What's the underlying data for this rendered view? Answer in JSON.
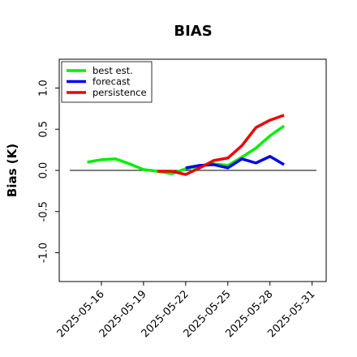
{
  "chart_data": {
    "type": "line",
    "title": "BIAS",
    "xlabel": "",
    "ylabel": "Bias (K)",
    "ylim": [
      -1.35,
      1.35
    ],
    "xlim": [
      "2025-05-13",
      "2025-06-01"
    ],
    "yticks": [
      {
        "value": -1.0,
        "label": "-1.0"
      },
      {
        "value": -0.5,
        "label": "-0.5"
      },
      {
        "value": 0.0,
        "label": "0.0"
      },
      {
        "value": 0.5,
        "label": "0.5"
      },
      {
        "value": 1.0,
        "label": "1.0"
      }
    ],
    "xticks": [
      {
        "date": "2025-05-16",
        "label": "2025-05-16",
        "color": "#000000"
      },
      {
        "date": "2025-05-19",
        "label": "2025-05-19",
        "color": "#000000"
      },
      {
        "date": "2025-05-22",
        "label": "2025-05-22",
        "color": "#2e8b2e"
      },
      {
        "date": "2025-05-25",
        "label": "2025-05-25",
        "color": "#000000"
      },
      {
        "date": "2025-05-28",
        "label": "2025-05-28",
        "color": "#000000"
      },
      {
        "date": "2025-05-31",
        "label": "2025-05-31",
        "color": "#000000"
      }
    ],
    "reference_line": 0.0,
    "legend_placement": "top-left",
    "series": [
      {
        "name": "best est.",
        "color": "#00ee00",
        "points": [
          [
            "2025-05-15",
            0.1
          ],
          [
            "2025-05-16",
            0.13
          ],
          [
            "2025-05-17",
            0.14
          ],
          [
            "2025-05-18",
            0.08
          ],
          [
            "2025-05-19",
            0.01
          ],
          [
            "2025-05-20",
            -0.01
          ],
          [
            "2025-05-21",
            -0.04
          ],
          [
            "2025-05-22",
            0.02
          ],
          [
            "2025-05-23",
            0.05
          ],
          [
            "2025-05-24",
            0.08
          ],
          [
            "2025-05-25",
            0.06
          ],
          [
            "2025-05-26",
            0.16
          ],
          [
            "2025-05-27",
            0.27
          ],
          [
            "2025-05-28",
            0.42
          ],
          [
            "2025-05-29",
            0.54
          ]
        ]
      },
      {
        "name": "forecast",
        "color": "#0000ee",
        "points": [
          [
            "2025-05-22",
            0.03
          ],
          [
            "2025-05-23",
            0.06
          ],
          [
            "2025-05-24",
            0.07
          ],
          [
            "2025-05-25",
            0.03
          ],
          [
            "2025-05-26",
            0.14
          ],
          [
            "2025-05-27",
            0.09
          ],
          [
            "2025-05-28",
            0.17
          ],
          [
            "2025-05-29",
            0.07
          ]
        ]
      },
      {
        "name": "persistence",
        "color": "#ee0000",
        "points": [
          [
            "2025-05-20",
            -0.01
          ],
          [
            "2025-05-21",
            -0.01
          ],
          [
            "2025-05-22",
            -0.05
          ],
          [
            "2025-05-23",
            0.03
          ],
          [
            "2025-05-24",
            0.12
          ],
          [
            "2025-05-25",
            0.15
          ],
          [
            "2025-05-26",
            0.3
          ],
          [
            "2025-05-27",
            0.52
          ],
          [
            "2025-05-28",
            0.61
          ],
          [
            "2025-05-29",
            0.67
          ]
        ]
      }
    ]
  }
}
